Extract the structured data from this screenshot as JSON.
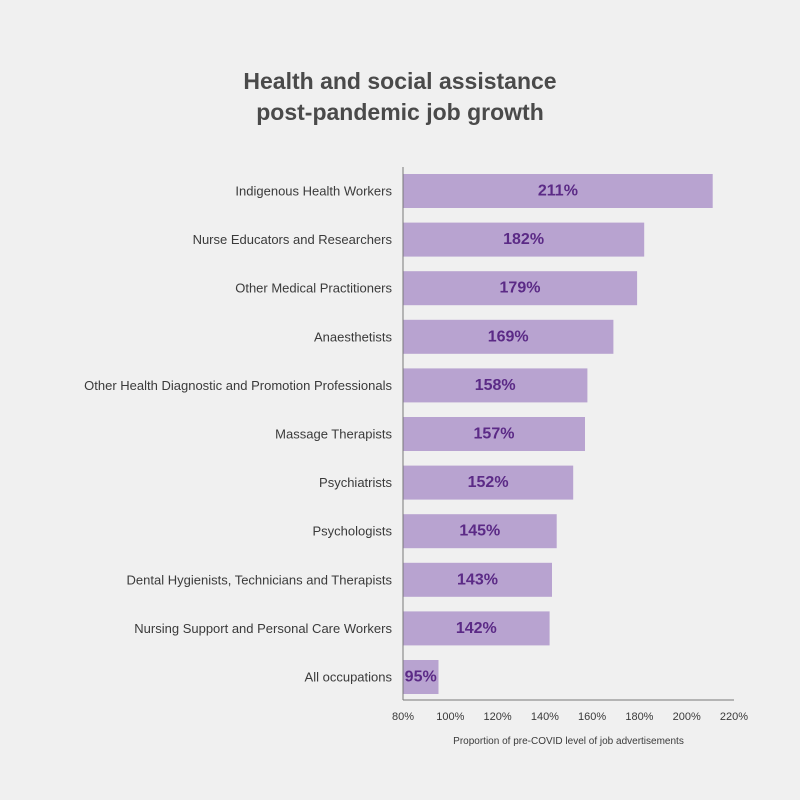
{
  "chart_data": {
    "type": "bar",
    "orientation": "horizontal",
    "title": [
      "Health and social assistance",
      "post-pandemic job growth"
    ],
    "xlabel": "Proportion of pre-COVID level of job advertisements",
    "ylabel": "",
    "xlim": [
      80,
      220
    ],
    "xticks": [
      "80%",
      "100%",
      "120%",
      "140%",
      "160%",
      "180%",
      "200%",
      "220%"
    ],
    "xtick_values": [
      80,
      100,
      120,
      140,
      160,
      180,
      200,
      220
    ],
    "categories": [
      "Indigenous Health Workers",
      "Nurse Educators and Researchers",
      "Other Medical Practitioners",
      "Anaesthetists",
      "Other Health Diagnostic and Promotion Professionals",
      "Massage Therapists",
      "Psychiatrists",
      "Psychologists",
      "Dental Hygienists, Technicians and Therapists",
      "Nursing Support and Personal Care Workers",
      "All occupations"
    ],
    "values": [
      211,
      182,
      179,
      169,
      158,
      157,
      152,
      145,
      143,
      142,
      95
    ],
    "value_labels": [
      "211%",
      "182%",
      "179%",
      "169%",
      "158%",
      "157%",
      "152%",
      "145%",
      "143%",
      "142%",
      "95%"
    ],
    "grid": false,
    "legend": "none",
    "colors": {
      "bar": "#b8a3d0",
      "value_label": "#5b2a86",
      "axis": "#777777",
      "text": "#3a3a3a",
      "title": "#4a4a4a",
      "background": "#f0f0f0"
    }
  }
}
